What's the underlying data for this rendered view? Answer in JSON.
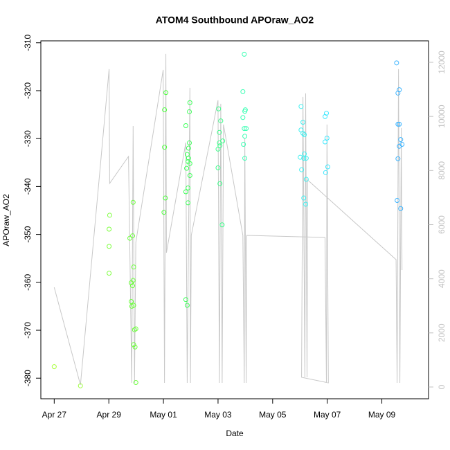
{
  "chart_data": {
    "type": "scatter",
    "title": "ATOM4 Southbound APOraw_AO2",
    "xlabel": "Date",
    "ylabel": "APOraw_AO2",
    "xlim": [
      -0.49,
      13.71
    ],
    "ylim": [
      -384.3,
      -309.6
    ],
    "y2lim": [
      -435,
      12793
    ],
    "xticks": [
      {
        "value": 0,
        "label": "Apr 27"
      },
      {
        "value": 2,
        "label": "Apr 29"
      },
      {
        "value": 4,
        "label": "May 01"
      },
      {
        "value": 6,
        "label": "May 03"
      },
      {
        "value": 8,
        "label": "May 05"
      },
      {
        "value": 10,
        "label": "May 07"
      },
      {
        "value": 12,
        "label": "May 09"
      }
    ],
    "yticks": [
      -380,
      -370,
      -360,
      -350,
      -340,
      -330,
      -320,
      -310
    ],
    "y2ticks": [
      0,
      2000,
      4000,
      6000,
      8000,
      10000,
      12000
    ],
    "points": {
      "x": [
        0,
        0.96,
        2.03,
        2.01,
        2.01,
        2.01,
        2.89,
        2.87,
        2.77,
        2.91,
        2.82,
        2.87,
        2.89,
        2.82,
        2.91,
        2.84,
        2.94,
        2.99,
        2.91,
        2.96,
        2.99,
        4.09,
        4.04,
        4.04,
        4.07,
        4.02,
        4.97,
        4.95,
        4.82,
        4.95,
        4.92,
        4.87,
        4.92,
        4.9,
        4.97,
        4.85,
        4.97,
        4.9,
        4.82,
        4.9,
        4.82,
        4.87,
        6.02,
        6.1,
        6.05,
        6.17,
        6.05,
        6.0,
        6.07,
        6.0,
        6.07,
        6.15,
        6.96,
        6.91,
        7.0,
        6.98,
        6.91,
        6.96,
        7.03,
        6.98,
        6.93,
        6.98,
        9.04,
        9.11,
        9.04,
        9.11,
        9.16,
        9.01,
        9.16,
        9.14,
        9.23,
        9.06,
        9.23,
        9.14,
        9.21,
        9.97,
        9.92,
        9.92,
        9.99,
        10.02,
        9.94,
        12.54,
        12.59,
        12.64,
        12.59,
        12.64,
        12.69,
        12.64,
        12.74,
        12.59,
        12.56,
        12.69
      ],
      "y": [
        -377.6,
        -381.6,
        -346.0,
        -348.9,
        -352.5,
        -358.1,
        -343.3,
        -350.3,
        -350.8,
        -356.8,
        -360.1,
        -360.7,
        -359.6,
        -364.0,
        -364.8,
        -365.0,
        -369.9,
        -369.7,
        -373.0,
        -373.5,
        -380.9,
        -320.4,
        -324.0,
        -331.8,
        -342.4,
        -345.4,
        -322.5,
        -324.4,
        -327.3,
        -330.9,
        -332.0,
        -333.3,
        -334.1,
        -334.8,
        -335.2,
        -336.2,
        -337.7,
        -340.3,
        -341.1,
        -343.4,
        -363.6,
        -364.8,
        -323.8,
        -326.3,
        -328.7,
        -330.5,
        -330.9,
        -332.2,
        -331.5,
        -336.1,
        -339.4,
        -348.0,
        -312.4,
        -320.2,
        -324.0,
        -324.3,
        -325.6,
        -327.9,
        -327.9,
        -329.5,
        -331.2,
        -334.1,
        -323.3,
        -326.6,
        -328.2,
        -328.9,
        -329.2,
        -333.9,
        -333.2,
        -334.1,
        -334.1,
        -336.5,
        -338.5,
        -342.4,
        -343.7,
        -324.7,
        -325.4,
        -330.7,
        -329.9,
        -335.9,
        -337.1,
        -314.2,
        -320.5,
        -319.8,
        -327.0,
        -327.0,
        -330.2,
        -331.6,
        -331.2,
        -334.2,
        -342.9,
        -344.6
      ],
      "colors": [
        "#a8ff3c",
        "#9cff3c",
        "#7cff3c",
        "#7cff3c",
        "#7cff3c",
        "#7cff3c",
        "#6cff3c",
        "#6cff3c",
        "#6cff3c",
        "#6cff3c",
        "#6cff3c",
        "#6cff3c",
        "#6cff3c",
        "#6cff3c",
        "#6cff3c",
        "#6cff3c",
        "#6cff3c",
        "#6cff3c",
        "#6cff3c",
        "#6cff3c",
        "#6cff3c",
        "#4cff3c",
        "#4cff3c",
        "#4cff3c",
        "#4cff3c",
        "#4cff3c",
        "#3cff58",
        "#3cff58",
        "#3cff58",
        "#3cff58",
        "#3cff58",
        "#3cff58",
        "#3cff58",
        "#3cff58",
        "#3cff58",
        "#3cff58",
        "#3cff58",
        "#3cff58",
        "#3cff58",
        "#3cff58",
        "#3cff58",
        "#3cff58",
        "#3cff8a",
        "#3cff8a",
        "#3cff8a",
        "#3cff8a",
        "#3cff8a",
        "#3cff8a",
        "#3cff8a",
        "#3cff8a",
        "#3cff8a",
        "#3cff8a",
        "#3cffb4",
        "#3cffb4",
        "#3cffb4",
        "#3cffb4",
        "#3cffb4",
        "#3cffb4",
        "#3cffb4",
        "#3cffb4",
        "#3cffb4",
        "#3cffb4",
        "#3cf0f0",
        "#3cf0f0",
        "#3cf0f0",
        "#3cf0f0",
        "#3cf0f0",
        "#3cf0f0",
        "#3cf0f0",
        "#3cf0f0",
        "#3cf0f0",
        "#3cf0f0",
        "#3cf0f0",
        "#3cf0f0",
        "#3cf0f0",
        "#3ce8ff",
        "#3ce8ff",
        "#3ce8ff",
        "#3ce8ff",
        "#3ce8ff",
        "#3ce8ff",
        "#3cb4ff",
        "#3cb4ff",
        "#3cb4ff",
        "#3cb4ff",
        "#3cb4ff",
        "#3cb4ff",
        "#3cb4ff",
        "#3cb4ff",
        "#3cb4ff",
        "#3cb4ff",
        "#3cb4ff"
      ]
    },
    "line": {
      "axis": "y2",
      "color": "#c8c8c8",
      "x": [
        0,
        0.96,
        2.01,
        2.03,
        2.72,
        2.84,
        2.89,
        2.94,
        2.99,
        3.99,
        4.04,
        4.09,
        4.11,
        4.82,
        4.87,
        4.97,
        4.99,
        5.02,
        6.0,
        6.05,
        6.1,
        6.15,
        6.2,
        6.91,
        6.96,
        6.98,
        7.03,
        7.05,
        9.92,
        9.97,
        9.99,
        10.04,
        9.06,
        9.11,
        9.18,
        9.21,
        9.26,
        9.28,
        12.52,
        12.56,
        12.61,
        12.66,
        12.71,
        12.74
      ],
      "y": [
        3685,
        77,
        11746,
        7524,
        8521,
        154,
        9647,
        154,
        5348,
        11720,
        154,
        12309,
        4964,
        9033,
        154,
        11055,
        154,
        5604,
        10594,
        154,
        10466,
        154,
        9699,
        5604,
        154,
        9187,
        154,
        5604,
        5527,
        154,
        9699,
        154,
        358,
        10722,
        358,
        10850,
        358,
        7652,
        4708,
        154,
        11746,
        154,
        9571,
        4325
      ]
    }
  }
}
